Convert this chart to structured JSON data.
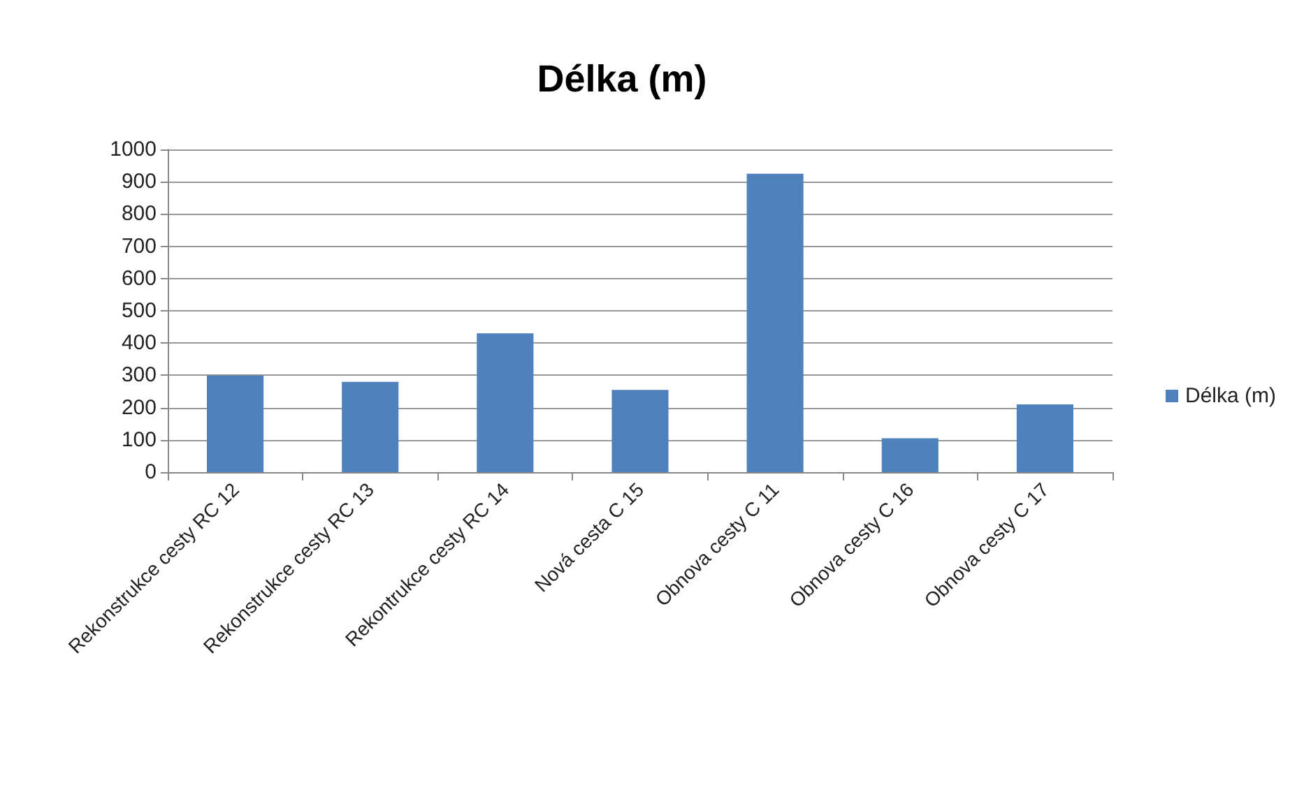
{
  "chart_data": {
    "type": "bar",
    "title": "Délka (m)",
    "categories": [
      "Rekonstrukce cesty RC 12",
      "Rekonstrukce cesty RC 13",
      "Rekontrukce cesty RC 14",
      "Nová cesta C 15",
      "Obnova cesty C 11",
      "Obnova cesty C 16",
      "Obnova cesty C 17"
    ],
    "series": [
      {
        "name": "Délka (m)",
        "color": "#4f81bd",
        "values": [
          300,
          280,
          430,
          255,
          925,
          105,
          210
        ]
      }
    ],
    "ylim": [
      0,
      1000
    ],
    "yticks": [
      0,
      100,
      200,
      300,
      400,
      500,
      600,
      700,
      800,
      900,
      1000
    ],
    "grid": "y",
    "legend": "right"
  }
}
